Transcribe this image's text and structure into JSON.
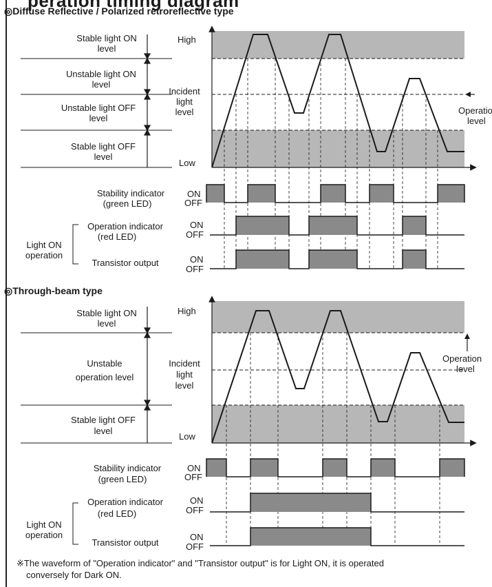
{
  "header": {
    "title_fragment": "peration timing diagram"
  },
  "sections": [
    {
      "title": "◎Diffuse Reflective / Polarized retroreflective type",
      "level_labels": [
        {
          "line1": "Stable light ON",
          "line2": "level"
        },
        {
          "line1": "Unstable light ON",
          "line2": "level"
        },
        {
          "line1": "Unstable light OFF",
          "line2": "level"
        },
        {
          "line1": "Stable light OFF",
          "line2": "level"
        }
      ],
      "axis": {
        "high": "High",
        "low": "Low",
        "incident": [
          "Incident",
          "light",
          "level"
        ]
      },
      "operation_label": [
        "Operation",
        "level"
      ],
      "stability": {
        "line1": "Stability indicator",
        "line2": "(green LED)"
      },
      "operation_indicator": {
        "line1": "Operation indicator",
        "line2": "(red LED)"
      },
      "transistor": "Transistor output",
      "light_on": [
        "Light ON",
        "operation"
      ],
      "on_label": "ON",
      "off_label": "OFF"
    },
    {
      "title": "◎Through-beam type",
      "level_labels": [
        {
          "line1": "Stable light ON",
          "line2": "level"
        },
        {
          "line1": "Unstable",
          "line2": "operation level"
        },
        {
          "line1": "Stable light OFF",
          "line2": "level"
        }
      ],
      "axis": {
        "high": "High",
        "low": "Low",
        "incident": [
          "Incident",
          "light",
          "level"
        ]
      },
      "operation_label": [
        "Operation",
        "level"
      ],
      "stability": {
        "line1": "Stability indicator",
        "line2": "(green LED)"
      },
      "operation_indicator": {
        "line1": "Operation indicator",
        "line2": "(red LED)"
      },
      "transistor": "Transistor output",
      "light_on": [
        "Light ON",
        "operation"
      ],
      "on_label": "ON",
      "off_label": "OFF"
    }
  ],
  "footnote": {
    "line1": "※The waveform of \"Operation indicator\" and \"Transistor output\" is for Light ON, it is operated",
    "line2": "conversely for Dark ON."
  },
  "colors": {
    "band": "#b7b7b7",
    "pulse": "#8a8a8a",
    "line": "#1a1a1a"
  },
  "timing": {
    "diffuse": {
      "stability_on": [
        [
          300,
          326
        ],
        [
          360,
          400
        ],
        [
          466,
          502
        ],
        [
          537,
          572
        ],
        [
          636,
          675
        ]
      ],
      "operation_on": [
        [
          343,
          420
        ],
        [
          449,
          519
        ],
        [
          585,
          619
        ]
      ],
      "transistor_on": [
        [
          343,
          420
        ],
        [
          449,
          519
        ],
        [
          585,
          619
        ]
      ]
    },
    "through_beam": {
      "stability_on": [
        [
          300,
          329
        ],
        [
          364,
          404
        ],
        [
          469,
          504
        ],
        [
          539,
          574
        ],
        [
          639,
          675
        ]
      ],
      "operation_on": [
        [
          364,
          539
        ]
      ],
      "transistor_on": [
        [
          364,
          539
        ]
      ]
    }
  }
}
